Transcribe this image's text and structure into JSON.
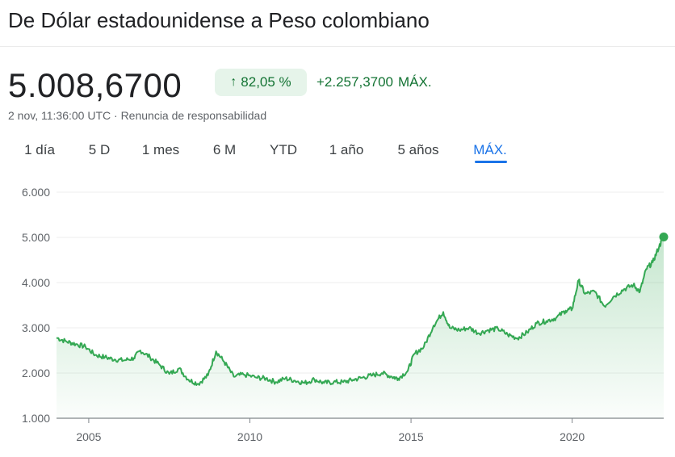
{
  "header": {
    "title": "De Dólar estadounidense a Peso colombiano"
  },
  "quote": {
    "price": "5.008,6700",
    "change_percent": "82,05 %",
    "change_abs": "+2.257,3700",
    "change_period": "MÁX.",
    "timestamp": "2 nov, 11:36:00 UTC",
    "separator": "·",
    "disclaimer": "Renuncia de responsabilidad"
  },
  "tabs": [
    {
      "label": "1 día"
    },
    {
      "label": "5 D"
    },
    {
      "label": "1 mes"
    },
    {
      "label": "6 M"
    },
    {
      "label": "YTD"
    },
    {
      "label": "1 año"
    },
    {
      "label": "5 años"
    },
    {
      "label": "MÁX."
    }
  ],
  "active_tab": "MÁX.",
  "colors": {
    "positive": "#137333",
    "line": "#34a853",
    "accent": "#1a73e8"
  },
  "chart_data": {
    "type": "area",
    "ylim": [
      1000,
      6000
    ],
    "yticks": [
      1000,
      2000,
      3000,
      4000,
      5000,
      6000
    ],
    "ytick_labels": [
      "1.000",
      "2.000",
      "3.000",
      "4.000",
      "5.000",
      "6.000"
    ],
    "xlim": [
      2004.0,
      2022.84
    ],
    "xticks": [
      2005,
      2010,
      2015,
      2020
    ],
    "xtick_labels": [
      "2005",
      "2010",
      "2015",
      "2020"
    ],
    "grid": true,
    "series": [
      {
        "x": [
          2004.0,
          2004.3,
          2004.6,
          2004.9,
          2005.2,
          2005.5,
          2005.8,
          2006.1,
          2006.4,
          2006.6,
          2006.9,
          2007.2,
          2007.5,
          2007.8,
          2008.1,
          2008.4,
          2008.7,
          2008.95,
          2009.2,
          2009.5,
          2009.8,
          2010.2,
          2010.5,
          2010.8,
          2011.1,
          2011.4,
          2011.7,
          2012.0,
          2012.3,
          2012.6,
          2012.9,
          2013.2,
          2013.5,
          2013.8,
          2014.1,
          2014.4,
          2014.6,
          2014.9,
          2015.1,
          2015.4,
          2015.7,
          2016.0,
          2016.2,
          2016.5,
          2016.8,
          2017.1,
          2017.4,
          2017.7,
          2018.0,
          2018.3,
          2018.6,
          2018.9,
          2019.2,
          2019.5,
          2019.8,
          2020.0,
          2020.2,
          2020.4,
          2020.7,
          2021.0,
          2021.3,
          2021.6,
          2021.9,
          2022.1,
          2022.3,
          2022.5,
          2022.7,
          2022.84
        ],
        "y": [
          2780,
          2700,
          2640,
          2580,
          2400,
          2350,
          2300,
          2280,
          2330,
          2500,
          2350,
          2180,
          1980,
          2100,
          1850,
          1760,
          1950,
          2480,
          2250,
          1920,
          1970,
          1900,
          1880,
          1800,
          1880,
          1830,
          1780,
          1860,
          1780,
          1800,
          1800,
          1850,
          1900,
          1950,
          2000,
          1920,
          1880,
          2050,
          2420,
          2580,
          3050,
          3350,
          3000,
          2950,
          3000,
          2880,
          2950,
          2980,
          2850,
          2770,
          2900,
          3100,
          3150,
          3220,
          3380,
          3420,
          4050,
          3750,
          3800,
          3480,
          3700,
          3850,
          3950,
          3800,
          4300,
          4450,
          4800,
          5009
        ]
      }
    ],
    "last_value": 5008.67
  }
}
